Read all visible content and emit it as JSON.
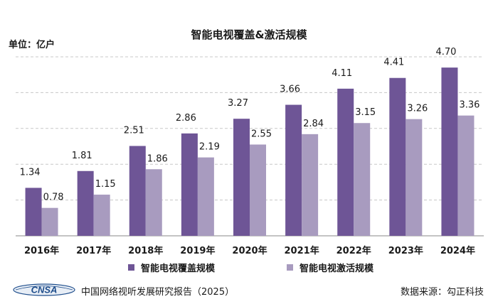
{
  "header": {
    "title": "智能电视覆盖&激活规模",
    "unit": "单位：亿户"
  },
  "legend": [
    {
      "label": "智能电视覆盖规模"
    },
    {
      "label": "智能电视激活规模"
    }
  ],
  "footer": {
    "logo_text": "CNSA",
    "report": "中国网络视听发展研究报告（2025）",
    "source": "数据来源：勾正科技"
  },
  "colors": {
    "series1": "#6e5596",
    "series2": "#a89bbf",
    "grid": "#c8c8c8",
    "axis": "#888888",
    "logo_blue": "#1f4e8c"
  },
  "chart_data": {
    "type": "bar",
    "title": "智能电视覆盖&激活规模",
    "ylabel": "单位：亿户",
    "categories": [
      "2016年",
      "2017年",
      "2018年",
      "2019年",
      "2020年",
      "2021年",
      "2022年",
      "2023年",
      "2024年"
    ],
    "series": [
      {
        "name": "智能电视覆盖规模",
        "values": [
          1.34,
          1.81,
          2.51,
          2.86,
          3.27,
          3.66,
          4.11,
          4.41,
          4.7
        ],
        "labels": [
          "1.34",
          "1.81",
          "2.51",
          "2.86",
          "3.27",
          "3.66",
          "4.11",
          "4.41",
          "4.70"
        ]
      },
      {
        "name": "智能电视激活规模",
        "values": [
          0.78,
          1.15,
          1.86,
          2.19,
          2.55,
          2.84,
          3.15,
          3.26,
          3.36
        ],
        "labels": [
          "0.78",
          "1.15",
          "1.86",
          "2.19",
          "2.55",
          "2.84",
          "3.15",
          "3.26",
          "3.36"
        ]
      }
    ],
    "ylim": [
      0,
      5
    ],
    "grid": true,
    "legend_position": "bottom"
  }
}
